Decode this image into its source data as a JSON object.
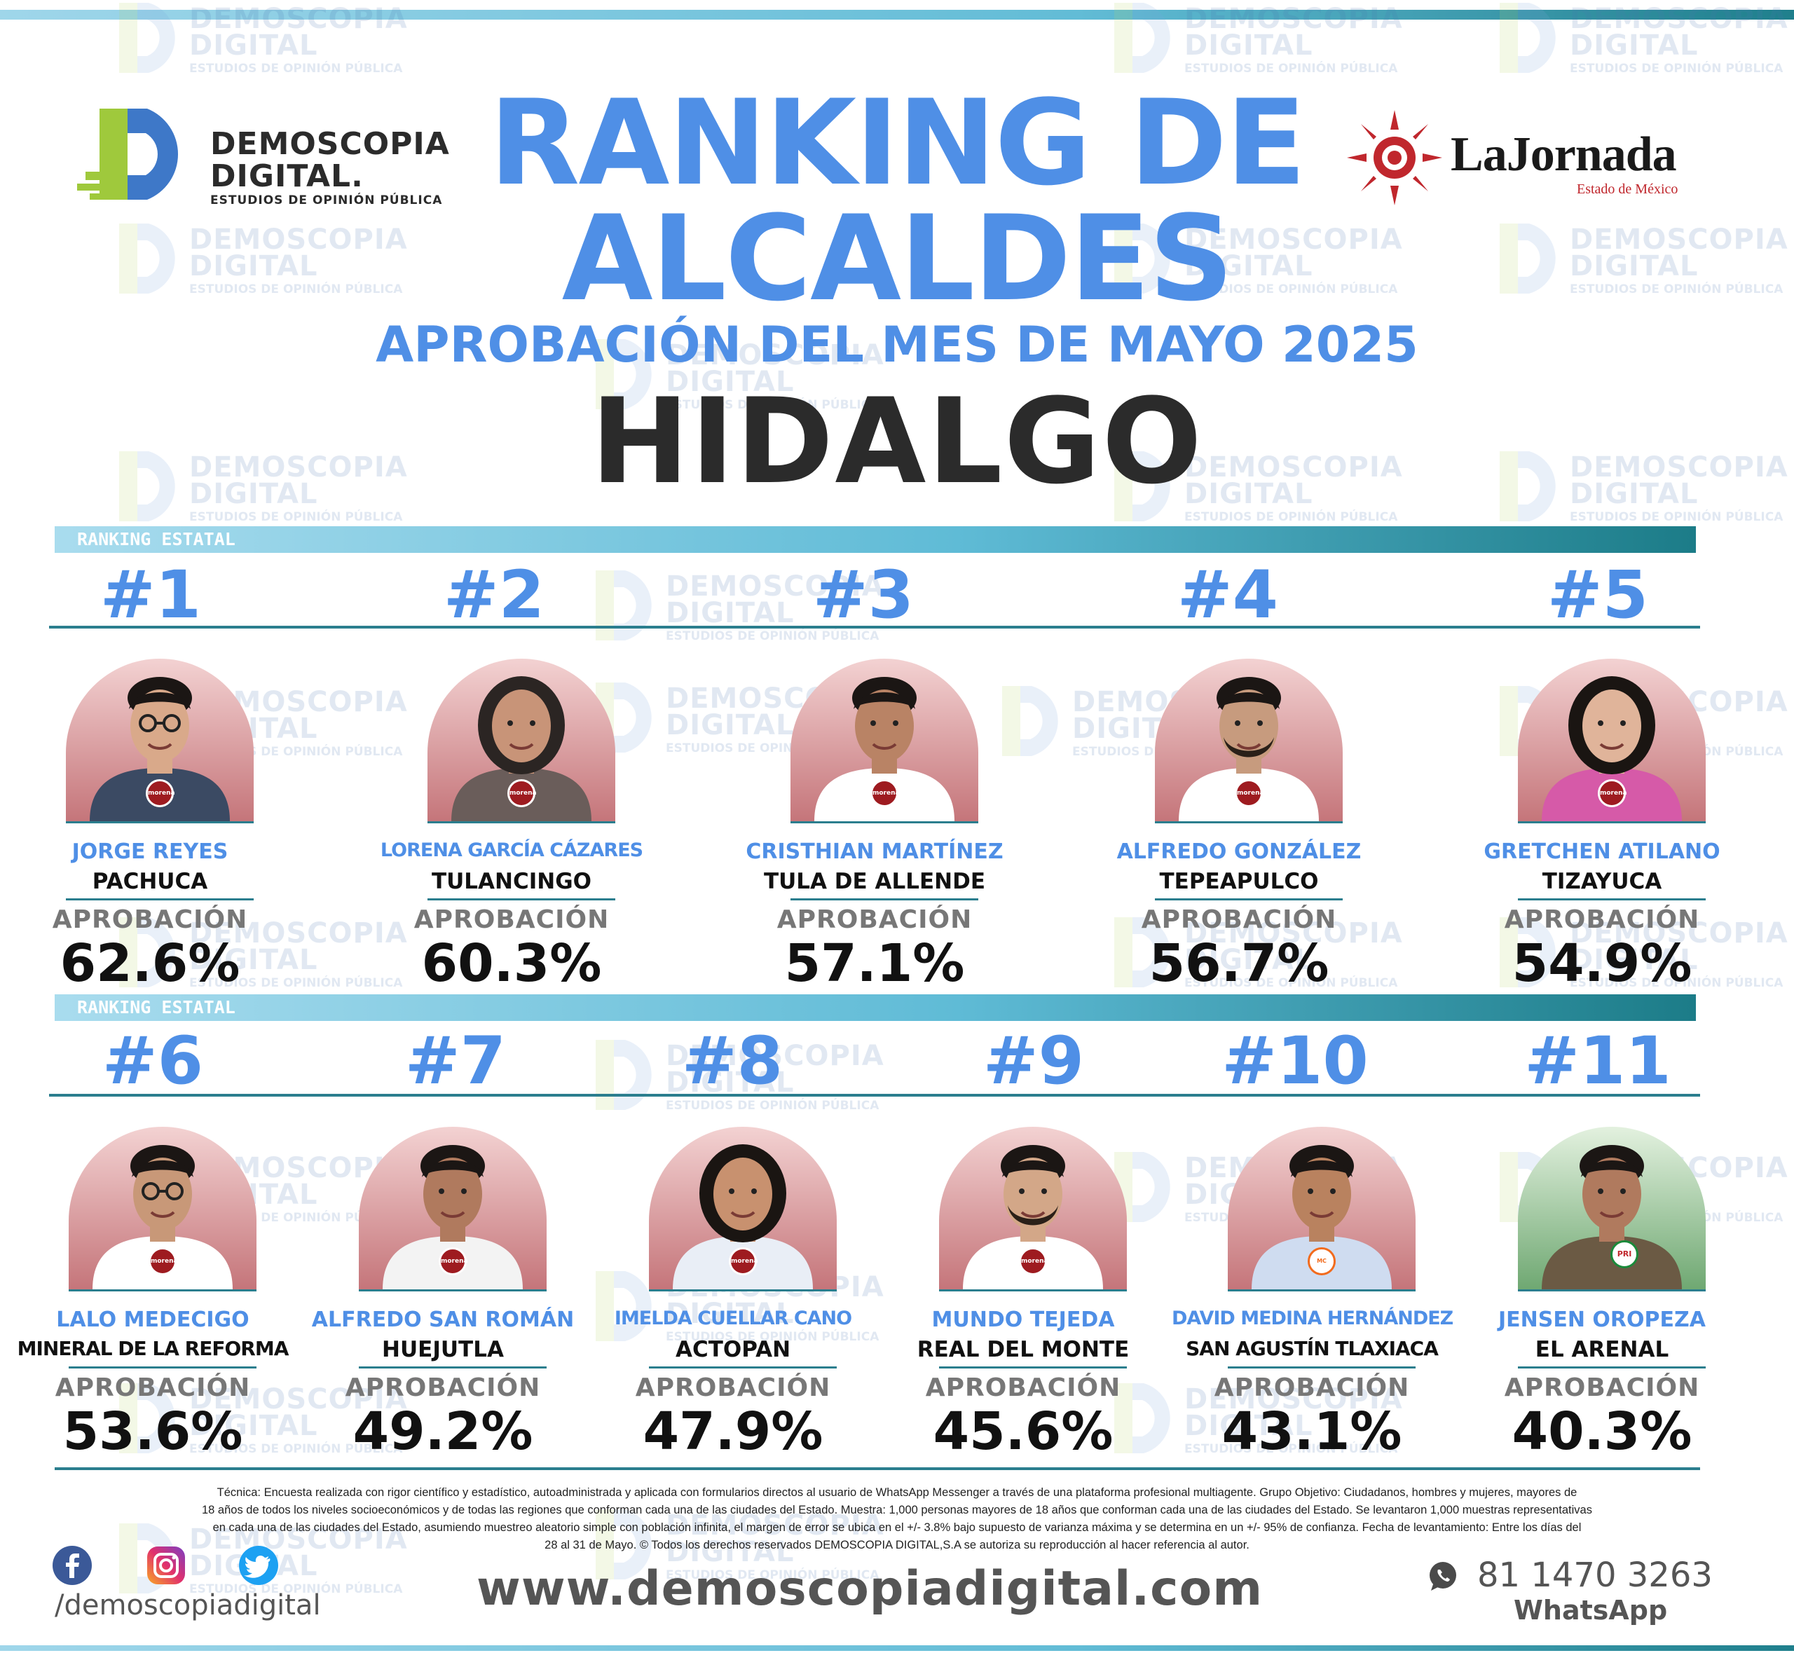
{
  "header": {
    "logo_left": {
      "line1": "DEMOSCOPIA",
      "line2": "DIGITAL.",
      "line3": "ESTUDIOS DE OPINIÓN PÚBLICA"
    },
    "logo_right": {
      "name": "LaJornada",
      "sub": "Estado de México"
    },
    "title_line1": "RANKING DE",
    "title_line2": "ALCALDES",
    "subtitle": "APROBACIÓN DEL MES DE MAYO 2025",
    "state": "HIDALGO"
  },
  "watermark": {
    "line1": "DEMOSCOPIA",
    "line2": "DIGITAL",
    "line3": "ESTUDIOS DE OPINIÓN PÚBLICA"
  },
  "section_label": "RANKING ESTATAL",
  "approval_label": "APROBACIÓN",
  "mayors": [
    {
      "rank": "#1",
      "name": "JORGE REYES",
      "city": "PACHUCA",
      "approval": "62.6%",
      "party": "morena"
    },
    {
      "rank": "#2",
      "name": "LORENA GARCÍA CÁZARES",
      "city": "TULANCINGO",
      "approval": "60.3%",
      "party": "morena"
    },
    {
      "rank": "#3",
      "name": "CRISTHIAN MARTÍNEZ",
      "city": "TULA DE ALLENDE",
      "approval": "57.1%",
      "party": "morena"
    },
    {
      "rank": "#4",
      "name": "ALFREDO GONZÁLEZ",
      "city": "TEPEAPULCO",
      "approval": "56.7%",
      "party": "morena"
    },
    {
      "rank": "#5",
      "name": "GRETCHEN ATILANO",
      "city": "TIZAYUCA",
      "approval": "54.9%",
      "party": "morena"
    },
    {
      "rank": "#6",
      "name": "LALO MEDECIGO",
      "city": "MINERAL DE LA REFORMA",
      "approval": "53.6%",
      "party": "morena"
    },
    {
      "rank": "#7",
      "name": "ALFREDO SAN ROMÁN",
      "city": "HUEJUTLA",
      "approval": "49.2%",
      "party": "morena"
    },
    {
      "rank": "#8",
      "name": "IMELDA CUELLAR CANO",
      "city": "ACTOPAN",
      "approval": "47.9%",
      "party": "morena"
    },
    {
      "rank": "#9",
      "name": "MUNDO TEJEDA",
      "city": "REAL DEL MONTE",
      "approval": "45.6%",
      "party": "morena"
    },
    {
      "rank": "#10",
      "name": "DAVID MEDINA HERNÁNDEZ",
      "city": "SAN AGUSTÍN TLAXIACA",
      "approval": "43.1%",
      "party": "movimiento-ciudadano"
    },
    {
      "rank": "#11",
      "name": "JENSEN OROPEZA",
      "city": "EL ARENAL",
      "approval": "40.3%",
      "party": "PRI"
    }
  ],
  "party_badges": {
    "morena": "morena",
    "movimiento-ciudadano": "MC",
    "PRI": "PRI"
  },
  "footer": {
    "technote_1": "Técnica: Encuesta realizada con rigor científico y estadístico, autoadministrada y aplicada con formularios directos al usuario de WhatsApp Messenger a través de una plataforma profesional multiagente. Grupo Objetivo: Ciudadanos, hombres y mujeres, mayores de",
    "technote_2": "18 años de todos los niveles socioeconómicos y de todas las regiones que conforman cada una de las ciudades del Estado. Muestra: 1,000 personas mayores de 18 años que conforman cada una de las ciudades del Estado. Se levantaron 1,000 muestras representativas",
    "technote_3": "en cada una de las ciudades del Estado, asumiendo muestreo aleatorio simple con población infinita, el margen de error se ubica en el +/- 3.8% bajo supuesto de varianza máxima y se determina en un +/- 95% de confianza. Fecha de levantamiento: Entre los días del",
    "technote_4": "28 al 31 de Mayo. © Todos los derechos reservados DEMOSCOPIA DIGITAL,S.A se autoriza su reproducción al hacer referencia al autor.",
    "handle": "/demoscopiadigital",
    "website": "www.demoscopiadigital.com",
    "phone": "81 1470 3263",
    "whatsapp_label": "WhatsApp"
  },
  "colors": {
    "accent_blue": "#4f8fe6",
    "teal": "#2b7e8e",
    "dark": "#2b2b2b"
  }
}
